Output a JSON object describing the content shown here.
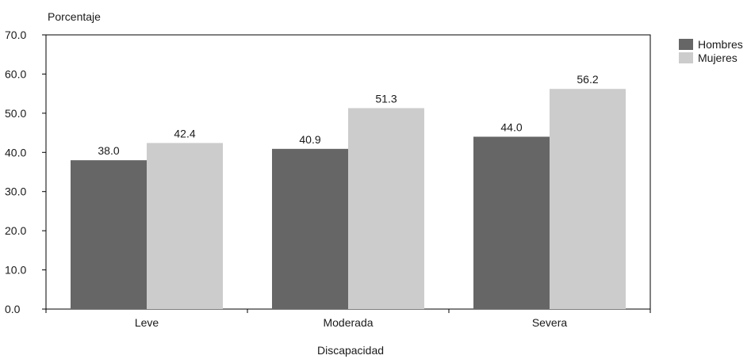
{
  "chart_data": {
    "type": "bar",
    "ylabel": "Porcentaje",
    "xlabel": "Discapacidad",
    "categories": [
      "Leve",
      "Moderada",
      "Severa"
    ],
    "series": [
      {
        "name": "Hombres",
        "values": [
          38.0,
          40.9,
          44.0
        ],
        "color": "#666666"
      },
      {
        "name": "Mujeres",
        "values": [
          42.4,
          51.3,
          56.2
        ],
        "color": "#cccccc"
      }
    ],
    "ylim": [
      0,
      70
    ],
    "yticks": [
      "0.0",
      "10.0",
      "20.0",
      "30.0",
      "40.0",
      "50.0",
      "60.0",
      "70.0"
    ],
    "data_labels": [
      [
        "38.0",
        "40.9",
        "44.0"
      ],
      [
        "42.4",
        "51.3",
        "56.2"
      ]
    ],
    "legend_position": "top-right",
    "grid": false
  }
}
